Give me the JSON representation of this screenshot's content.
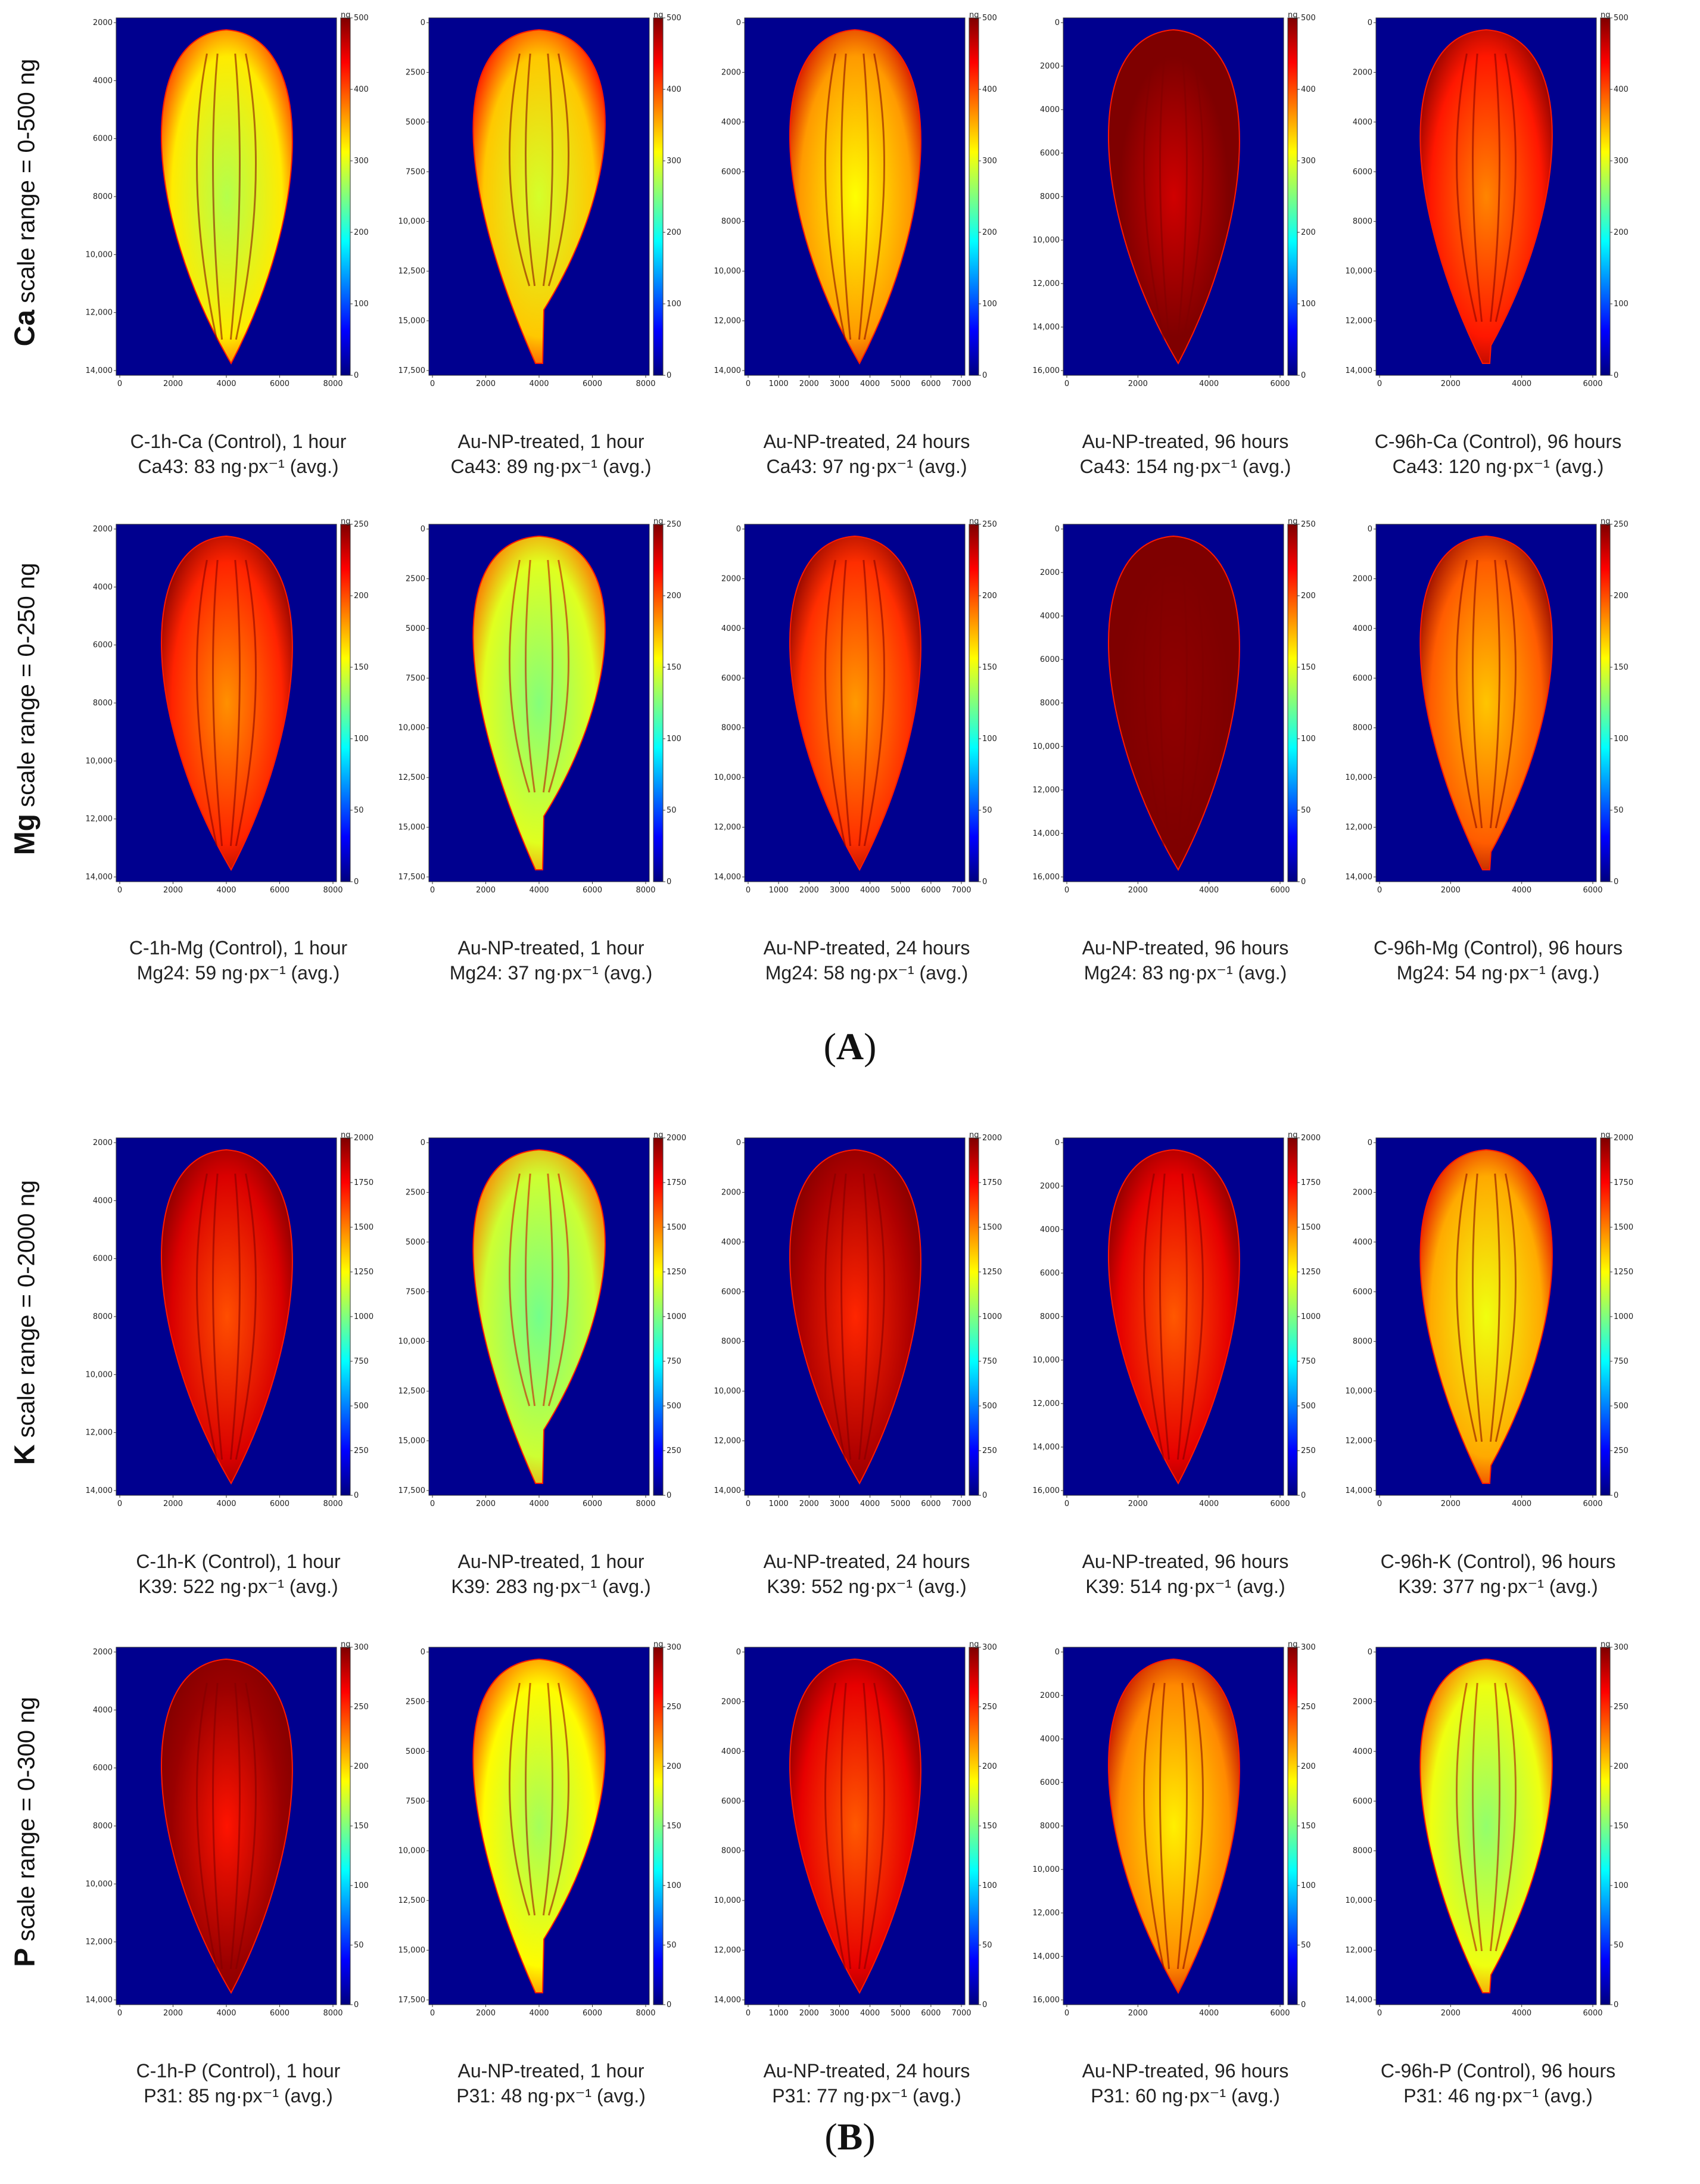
{
  "panels": [
    {
      "label": "A",
      "rows": [
        {
          "element": "Ca",
          "scale_text": "scale range = 0-500 ng",
          "max": 500,
          "ticks": [
            0,
            100,
            200,
            300,
            400,
            500
          ],
          "unit": "ng",
          "images": [
            {
              "title": "C-1h-Ca (Control), 1 hour",
              "avg_label": "Ca43: 83 ng·px⁻¹ (avg.)",
              "avg": 83,
              "yticks": [
                "2000",
                "4000",
                "6000",
                "8000",
                "10,000",
                "12,000",
                "14,000"
              ],
              "xticks": [
                "0",
                "2000",
                "4000",
                "6000",
                "8000"
              ]
            },
            {
              "title": "Au-NP-treated, 1 hour",
              "avg_label": "Ca43: 89 ng·px⁻¹ (avg.)",
              "avg": 89,
              "yticks": [
                "0",
                "2500",
                "5000",
                "7500",
                "10,000",
                "12,500",
                "15,000",
                "17,500"
              ],
              "xticks": [
                "0",
                "2000",
                "4000",
                "6000",
                "8000"
              ]
            },
            {
              "title": "Au-NP-treated, 24 hours",
              "avg_label": "Ca43: 97 ng·px⁻¹ (avg.)",
              "avg": 97,
              "yticks": [
                "0",
                "2000",
                "4000",
                "6000",
                "8000",
                "10,000",
                "12,000",
                "14,000"
              ],
              "xticks": [
                "0",
                "1000",
                "2000",
                "3000",
                "4000",
                "5000",
                "6000",
                "7000"
              ]
            },
            {
              "title": "Au-NP-treated, 96 hours",
              "avg_label": "Ca43: 154 ng·px⁻¹ (avg.)",
              "avg": 154,
              "yticks": [
                "0",
                "2000",
                "4000",
                "6000",
                "8000",
                "10,000",
                "12,000",
                "14,000",
                "16,000"
              ],
              "xticks": [
                "0",
                "2000",
                "4000",
                "6000"
              ]
            },
            {
              "title": "C-96h-Ca (Control), 96 hours",
              "avg_label": "Ca43: 120 ng·px⁻¹ (avg.)",
              "avg": 120,
              "yticks": [
                "0",
                "2000",
                "4000",
                "6000",
                "8000",
                "10,000",
                "12,000",
                "14,000"
              ],
              "xticks": [
                "0",
                "2000",
                "4000",
                "6000"
              ]
            }
          ]
        },
        {
          "element": "Mg",
          "scale_text": "scale range = 0-250 ng",
          "max": 250,
          "ticks": [
            0,
            50,
            100,
            150,
            200,
            250
          ],
          "unit": "ng",
          "images": [
            {
              "title": "C-1h-Mg (Control), 1 hour",
              "avg_label": "Mg24: 59 ng·px⁻¹ (avg.)",
              "avg": 59,
              "yticks": [
                "2000",
                "4000",
                "6000",
                "8000",
                "10,000",
                "12,000",
                "14,000"
              ],
              "xticks": [
                "0",
                "2000",
                "4000",
                "6000",
                "8000"
              ]
            },
            {
              "title": "Au-NP-treated, 1 hour",
              "avg_label": "Mg24: 37 ng·px⁻¹ (avg.)",
              "avg": 37,
              "yticks": [
                "0",
                "2500",
                "5000",
                "7500",
                "10,000",
                "12,500",
                "15,000",
                "17,500"
              ],
              "xticks": [
                "0",
                "2000",
                "4000",
                "6000",
                "8000"
              ]
            },
            {
              "title": "Au-NP-treated, 24 hours",
              "avg_label": "Mg24: 58 ng·px⁻¹ (avg.)",
              "avg": 58,
              "yticks": [
                "0",
                "2000",
                "4000",
                "6000",
                "8000",
                "10,000",
                "12,000",
                "14,000"
              ],
              "xticks": [
                "0",
                "1000",
                "2000",
                "3000",
                "4000",
                "5000",
                "6000",
                "7000"
              ]
            },
            {
              "title": "Au-NP-treated, 96 hours",
              "avg_label": "Mg24: 83 ng·px⁻¹ (avg.)",
              "avg": 83,
              "yticks": [
                "0",
                "2000",
                "4000",
                "6000",
                "8000",
                "10,000",
                "12,000",
                "14,000",
                "16,000"
              ],
              "xticks": [
                "0",
                "2000",
                "4000",
                "6000"
              ]
            },
            {
              "title": "C-96h-Mg (Control), 96 hours",
              "avg_label": "Mg24: 54 ng·px⁻¹ (avg.)",
              "avg": 54,
              "yticks": [
                "0",
                "2000",
                "4000",
                "6000",
                "8000",
                "10,000",
                "12,000",
                "14,000"
              ],
              "xticks": [
                "0",
                "2000",
                "4000",
                "6000"
              ]
            }
          ]
        }
      ]
    },
    {
      "label": "B",
      "rows": [
        {
          "element": "K",
          "scale_text": "scale range = 0-2000 ng",
          "max": 2000,
          "ticks": [
            0,
            250,
            500,
            750,
            1000,
            1250,
            1500,
            1750,
            2000
          ],
          "unit": "ng",
          "images": [
            {
              "title": "C-1h-K (Control), 1 hour",
              "avg_label": "K39: 522 ng·px⁻¹ (avg.)",
              "avg": 522,
              "yticks": [
                "2000",
                "4000",
                "6000",
                "8000",
                "10,000",
                "12,000",
                "14,000"
              ],
              "xticks": [
                "0",
                "2000",
                "4000",
                "6000",
                "8000"
              ]
            },
            {
              "title": "Au-NP-treated, 1 hour",
              "avg_label": "K39: 283 ng·px⁻¹ (avg.)",
              "avg": 283,
              "yticks": [
                "0",
                "2500",
                "5000",
                "7500",
                "10,000",
                "12,500",
                "15,000",
                "17,500"
              ],
              "xticks": [
                "0",
                "2000",
                "4000",
                "6000",
                "8000"
              ]
            },
            {
              "title": "Au-NP-treated, 24 hours",
              "avg_label": "K39: 552 ng·px⁻¹ (avg.)",
              "avg": 552,
              "yticks": [
                "0",
                "2000",
                "4000",
                "6000",
                "8000",
                "10,000",
                "12,000",
                "14,000"
              ],
              "xticks": [
                "0",
                "1000",
                "2000",
                "3000",
                "4000",
                "5000",
                "6000",
                "7000"
              ]
            },
            {
              "title": "Au-NP-treated, 96 hours",
              "avg_label": "K39: 514 ng·px⁻¹ (avg.)",
              "avg": 514,
              "yticks": [
                "0",
                "2000",
                "4000",
                "6000",
                "8000",
                "10,000",
                "12,000",
                "14,000",
                "16,000"
              ],
              "xticks": [
                "0",
                "2000",
                "4000",
                "6000"
              ]
            },
            {
              "title": "C-96h-K (Control), 96 hours",
              "avg_label": "K39: 377 ng·px⁻¹ (avg.)",
              "avg": 377,
              "yticks": [
                "0",
                "2000",
                "4000",
                "6000",
                "8000",
                "10,000",
                "12,000",
                "14,000"
              ],
              "xticks": [
                "0",
                "2000",
                "4000",
                "6000"
              ]
            }
          ]
        },
        {
          "element": "P",
          "scale_text": "scale range = 0-300 ng",
          "max": 300,
          "ticks": [
            0,
            50,
            100,
            150,
            200,
            250,
            300
          ],
          "unit": "ng",
          "images": [
            {
              "title": "C-1h-P (Control), 1 hour",
              "avg_label": "P31: 85 ng·px⁻¹ (avg.)",
              "avg": 85,
              "yticks": [
                "2000",
                "4000",
                "6000",
                "8000",
                "10,000",
                "12,000",
                "14,000"
              ],
              "xticks": [
                "0",
                "2000",
                "4000",
                "6000",
                "8000"
              ]
            },
            {
              "title": "Au-NP-treated, 1 hour",
              "avg_label": "P31: 48 ng·px⁻¹ (avg.)",
              "avg": 48,
              "yticks": [
                "0",
                "2500",
                "5000",
                "7500",
                "10,000",
                "12,500",
                "15,000",
                "17,500"
              ],
              "xticks": [
                "0",
                "2000",
                "4000",
                "6000",
                "8000"
              ]
            },
            {
              "title": "Au-NP-treated, 24 hours",
              "avg_label": "P31: 77 ng·px⁻¹ (avg.)",
              "avg": 77,
              "yticks": [
                "0",
                "2000",
                "4000",
                "6000",
                "8000",
                "10,000",
                "12,000",
                "14,000"
              ],
              "xticks": [
                "0",
                "1000",
                "2000",
                "3000",
                "4000",
                "5000",
                "6000",
                "7000"
              ]
            },
            {
              "title": "Au-NP-treated, 96 hours",
              "avg_label": "P31: 60 ng·px⁻¹ (avg.)",
              "avg": 60,
              "yticks": [
                "0",
                "2000",
                "4000",
                "6000",
                "8000",
                "10,000",
                "12,000",
                "14,000",
                "16,000"
              ],
              "xticks": [
                "0",
                "2000",
                "4000",
                "6000"
              ]
            },
            {
              "title": "C-96h-P (Control), 96 hours",
              "avg_label": "P31: 46 ng·px⁻¹ (avg.)",
              "avg": 46,
              "yticks": [
                "0",
                "2000",
                "4000",
                "6000",
                "8000",
                "10,000",
                "12,000",
                "14,000"
              ],
              "xticks": [
                "0",
                "2000",
                "4000",
                "6000"
              ]
            }
          ]
        }
      ]
    }
  ],
  "colors": {
    "background": "#00008f",
    "jet": [
      "#00007f",
      "#0000ff",
      "#007fff",
      "#00ffff",
      "#7fff7f",
      "#ffff00",
      "#ff7f00",
      "#ff0000",
      "#7f0000"
    ]
  }
}
